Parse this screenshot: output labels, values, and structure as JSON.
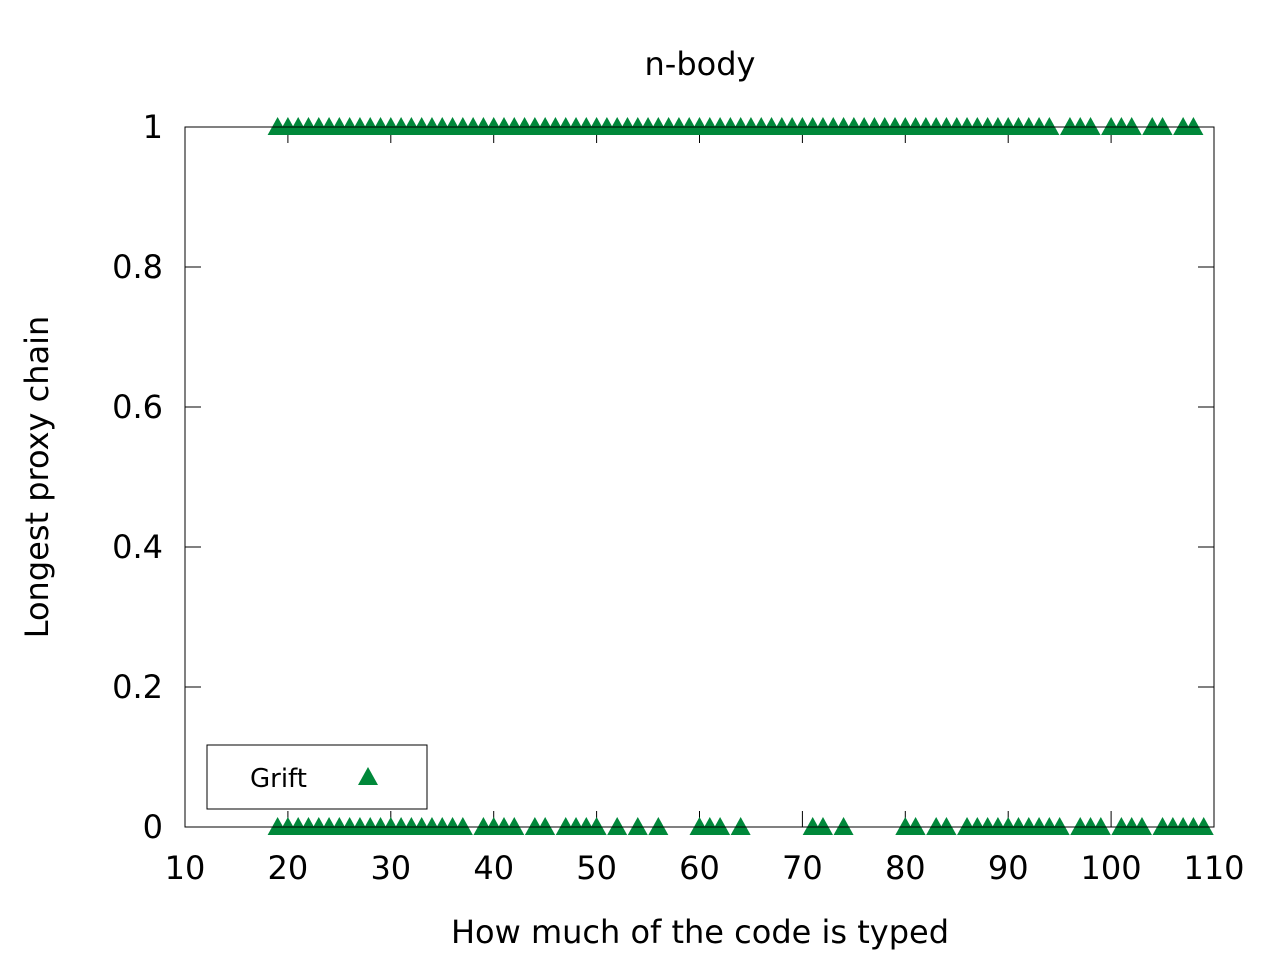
{
  "chart_data": {
    "type": "scatter",
    "title": "n-body",
    "xlabel": "How much of the code is typed",
    "ylabel": "Longest proxy chain",
    "xlim": [
      10,
      110
    ],
    "ylim": [
      0,
      1
    ],
    "xticks": [
      10,
      20,
      30,
      40,
      50,
      60,
      70,
      80,
      90,
      100,
      110
    ],
    "yticks": [
      0,
      0.2,
      0.4,
      0.6,
      0.8,
      1
    ],
    "grid": false,
    "legend": {
      "position": "bottom-left"
    },
    "series": [
      {
        "name": "Grift",
        "color": "#00883a",
        "marker": "triangle",
        "points": [
          [
            19,
            1
          ],
          [
            20,
            1
          ],
          [
            21,
            1
          ],
          [
            22,
            1
          ],
          [
            23,
            1
          ],
          [
            24,
            1
          ],
          [
            25,
            1
          ],
          [
            26,
            1
          ],
          [
            27,
            1
          ],
          [
            28,
            1
          ],
          [
            29,
            1
          ],
          [
            30,
            1
          ],
          [
            31,
            1
          ],
          [
            32,
            1
          ],
          [
            33,
            1
          ],
          [
            34,
            1
          ],
          [
            35,
            1
          ],
          [
            36,
            1
          ],
          [
            37,
            1
          ],
          [
            38,
            1
          ],
          [
            39,
            1
          ],
          [
            40,
            1
          ],
          [
            41,
            1
          ],
          [
            42,
            1
          ],
          [
            43,
            1
          ],
          [
            44,
            1
          ],
          [
            45,
            1
          ],
          [
            46,
            1
          ],
          [
            47,
            1
          ],
          [
            48,
            1
          ],
          [
            49,
            1
          ],
          [
            50,
            1
          ],
          [
            51,
            1
          ],
          [
            52,
            1
          ],
          [
            53,
            1
          ],
          [
            54,
            1
          ],
          [
            55,
            1
          ],
          [
            56,
            1
          ],
          [
            57,
            1
          ],
          [
            58,
            1
          ],
          [
            59,
            1
          ],
          [
            60,
            1
          ],
          [
            61,
            1
          ],
          [
            62,
            1
          ],
          [
            63,
            1
          ],
          [
            64,
            1
          ],
          [
            65,
            1
          ],
          [
            66,
            1
          ],
          [
            67,
            1
          ],
          [
            68,
            1
          ],
          [
            69,
            1
          ],
          [
            70,
            1
          ],
          [
            71,
            1
          ],
          [
            72,
            1
          ],
          [
            73,
            1
          ],
          [
            74,
            1
          ],
          [
            75,
            1
          ],
          [
            76,
            1
          ],
          [
            77,
            1
          ],
          [
            78,
            1
          ],
          [
            79,
            1
          ],
          [
            80,
            1
          ],
          [
            81,
            1
          ],
          [
            82,
            1
          ],
          [
            83,
            1
          ],
          [
            84,
            1
          ],
          [
            85,
            1
          ],
          [
            86,
            1
          ],
          [
            87,
            1
          ],
          [
            88,
            1
          ],
          [
            89,
            1
          ],
          [
            90,
            1
          ],
          [
            91,
            1
          ],
          [
            92,
            1
          ],
          [
            93,
            1
          ],
          [
            94,
            1
          ],
          [
            96,
            1
          ],
          [
            97,
            1
          ],
          [
            98,
            1
          ],
          [
            100,
            1
          ],
          [
            101,
            1
          ],
          [
            102,
            1
          ],
          [
            104,
            1
          ],
          [
            105,
            1
          ],
          [
            107,
            1
          ],
          [
            108,
            1
          ],
          [
            19,
            0
          ],
          [
            20,
            0
          ],
          [
            21,
            0
          ],
          [
            22,
            0
          ],
          [
            23,
            0
          ],
          [
            24,
            0
          ],
          [
            25,
            0
          ],
          [
            26,
            0
          ],
          [
            27,
            0
          ],
          [
            28,
            0
          ],
          [
            29,
            0
          ],
          [
            30,
            0
          ],
          [
            31,
            0
          ],
          [
            32,
            0
          ],
          [
            33,
            0
          ],
          [
            34,
            0
          ],
          [
            35,
            0
          ],
          [
            36,
            0
          ],
          [
            37,
            0
          ],
          [
            39,
            0
          ],
          [
            40,
            0
          ],
          [
            41,
            0
          ],
          [
            42,
            0
          ],
          [
            44,
            0
          ],
          [
            45,
            0
          ],
          [
            47,
            0
          ],
          [
            48,
            0
          ],
          [
            49,
            0
          ],
          [
            50,
            0
          ],
          [
            52,
            0
          ],
          [
            54,
            0
          ],
          [
            56,
            0
          ],
          [
            60,
            0
          ],
          [
            61,
            0
          ],
          [
            62,
            0
          ],
          [
            64,
            0
          ],
          [
            71,
            0
          ],
          [
            72,
            0
          ],
          [
            74,
            0
          ],
          [
            80,
            0
          ],
          [
            81,
            0
          ],
          [
            83,
            0
          ],
          [
            84,
            0
          ],
          [
            86,
            0
          ],
          [
            87,
            0
          ],
          [
            88,
            0
          ],
          [
            89,
            0
          ],
          [
            90,
            0
          ],
          [
            91,
            0
          ],
          [
            92,
            0
          ],
          [
            93,
            0
          ],
          [
            94,
            0
          ],
          [
            95,
            0
          ],
          [
            97,
            0
          ],
          [
            98,
            0
          ],
          [
            99,
            0
          ],
          [
            101,
            0
          ],
          [
            102,
            0
          ],
          [
            103,
            0
          ],
          [
            105,
            0
          ],
          [
            106,
            0
          ],
          [
            107,
            0
          ],
          [
            108,
            0
          ],
          [
            109,
            0
          ]
        ]
      }
    ]
  }
}
